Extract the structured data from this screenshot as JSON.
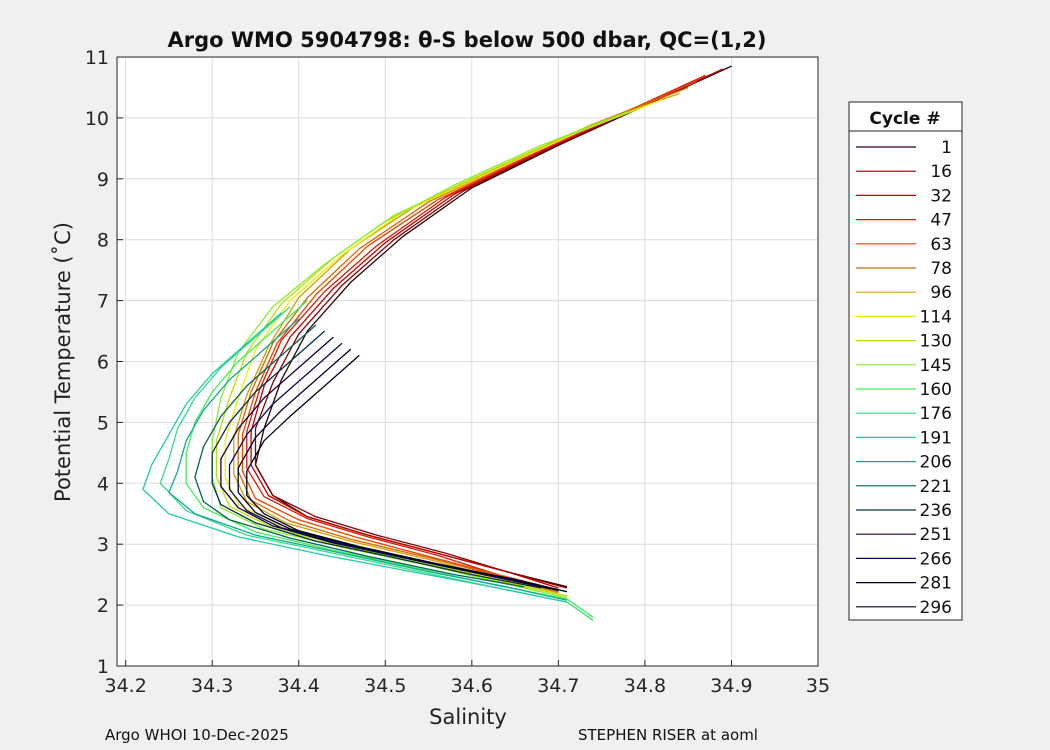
{
  "chart_data": {
    "type": "line",
    "title": "Argo WMO 5904798: θ-S below 500 dbar,  QC=(1,2)",
    "xlabel": "Salinity",
    "ylabel": "Potential Temperature (˚C)",
    "xlim": [
      34.19,
      35.0
    ],
    "ylim": [
      1,
      11
    ],
    "xticks": [
      "34.2",
      "34.3",
      "34.4",
      "34.5",
      "34.6",
      "34.7",
      "34.8",
      "34.9",
      "35"
    ],
    "yticks": [
      "1",
      "2",
      "3",
      "4",
      "5",
      "6",
      "7",
      "8",
      "9",
      "10",
      "11"
    ],
    "grid": true,
    "legend": {
      "title": "Cycle #",
      "placement": "outside-right"
    },
    "series": [
      {
        "name": "1",
        "color": "#2a0000",
        "points": [
          [
            34.9,
            10.85
          ],
          [
            34.8,
            10.2
          ],
          [
            34.7,
            9.55
          ],
          [
            34.6,
            8.85
          ],
          [
            34.52,
            8.05
          ],
          [
            34.46,
            7.3
          ],
          [
            34.41,
            6.5
          ],
          [
            34.38,
            5.7
          ],
          [
            34.36,
            4.9
          ],
          [
            34.35,
            4.3
          ],
          [
            34.37,
            3.8
          ],
          [
            34.41,
            3.45
          ],
          [
            34.48,
            3.15
          ],
          [
            34.56,
            2.85
          ],
          [
            34.64,
            2.55
          ],
          [
            34.71,
            2.3
          ]
        ]
      },
      {
        "name": "16",
        "color": "#8b0000",
        "points": [
          [
            34.89,
            10.8
          ],
          [
            34.79,
            10.15
          ],
          [
            34.69,
            9.5
          ],
          [
            34.59,
            8.8
          ],
          [
            34.51,
            8.0
          ],
          [
            34.45,
            7.25
          ],
          [
            34.4,
            6.45
          ],
          [
            34.37,
            5.65
          ],
          [
            34.35,
            4.9
          ],
          [
            34.35,
            4.3
          ],
          [
            34.37,
            3.8
          ],
          [
            34.42,
            3.45
          ],
          [
            34.49,
            3.15
          ],
          [
            34.57,
            2.85
          ],
          [
            34.64,
            2.55
          ],
          [
            34.71,
            2.28
          ]
        ]
      },
      {
        "name": "32",
        "color": "#c00000",
        "points": [
          [
            34.89,
            10.8
          ],
          [
            34.78,
            10.1
          ],
          [
            34.68,
            9.45
          ],
          [
            34.58,
            8.75
          ],
          [
            34.5,
            7.95
          ],
          [
            34.44,
            7.2
          ],
          [
            34.39,
            6.4
          ],
          [
            34.36,
            5.6
          ],
          [
            34.345,
            4.85
          ],
          [
            34.345,
            4.3
          ],
          [
            34.365,
            3.8
          ],
          [
            34.41,
            3.45
          ],
          [
            34.48,
            3.15
          ],
          [
            34.56,
            2.85
          ],
          [
            34.64,
            2.55
          ],
          [
            34.7,
            2.28
          ]
        ]
      },
      {
        "name": "47",
        "color": "#dd1a00",
        "points": [
          [
            34.87,
            10.7
          ],
          [
            34.77,
            10.05
          ],
          [
            34.67,
            9.4
          ],
          [
            34.57,
            8.7
          ],
          [
            34.49,
            7.9
          ],
          [
            34.43,
            7.15
          ],
          [
            34.38,
            6.35
          ],
          [
            34.355,
            5.55
          ],
          [
            34.34,
            4.85
          ],
          [
            34.34,
            4.25
          ],
          [
            34.36,
            3.78
          ],
          [
            34.41,
            3.42
          ],
          [
            34.48,
            3.12
          ],
          [
            34.56,
            2.82
          ],
          [
            34.63,
            2.5
          ],
          [
            34.7,
            2.25
          ]
        ]
      },
      {
        "name": "63",
        "color": "#ee4400",
        "points": [
          [
            34.86,
            10.6
          ],
          [
            34.76,
            10.0
          ],
          [
            34.66,
            9.35
          ],
          [
            34.56,
            8.65
          ],
          [
            34.48,
            7.9
          ],
          [
            34.42,
            7.1
          ],
          [
            34.375,
            6.3
          ],
          [
            34.35,
            5.5
          ],
          [
            34.335,
            4.8
          ],
          [
            34.335,
            4.2
          ],
          [
            34.35,
            3.75
          ],
          [
            34.4,
            3.4
          ],
          [
            34.47,
            3.1
          ],
          [
            34.55,
            2.8
          ],
          [
            34.63,
            2.5
          ],
          [
            34.7,
            2.25
          ]
        ]
      },
      {
        "name": "78",
        "color": "#d46a00",
        "points": [
          [
            34.85,
            10.5
          ],
          [
            34.75,
            9.95
          ],
          [
            34.65,
            9.3
          ],
          [
            34.55,
            8.62
          ],
          [
            34.47,
            7.85
          ],
          [
            34.41,
            7.05
          ],
          [
            34.37,
            6.3
          ],
          [
            34.345,
            5.5
          ],
          [
            34.33,
            4.8
          ],
          [
            34.33,
            4.2
          ],
          [
            34.345,
            3.72
          ],
          [
            34.39,
            3.38
          ],
          [
            34.46,
            3.08
          ],
          [
            34.55,
            2.78
          ],
          [
            34.63,
            2.48
          ],
          [
            34.7,
            2.22
          ]
        ]
      },
      {
        "name": "96",
        "color": "#d4a000",
        "points": [
          [
            34.84,
            10.4
          ],
          [
            34.74,
            9.9
          ],
          [
            34.64,
            9.25
          ],
          [
            34.54,
            8.6
          ],
          [
            34.46,
            7.85
          ],
          [
            34.4,
            7.05
          ],
          [
            34.365,
            6.25
          ],
          [
            34.34,
            5.45
          ],
          [
            34.325,
            4.75
          ],
          [
            34.325,
            4.15
          ],
          [
            34.34,
            3.7
          ],
          [
            34.385,
            3.35
          ],
          [
            34.46,
            3.05
          ],
          [
            34.55,
            2.75
          ],
          [
            34.63,
            2.45
          ],
          [
            34.7,
            2.2
          ]
        ]
      },
      {
        "name": "114",
        "color": "#eeee00",
        "points": [
          [
            34.82,
            10.3
          ],
          [
            34.72,
            9.75
          ],
          [
            34.62,
            9.1
          ],
          [
            34.52,
            8.45
          ],
          [
            34.45,
            7.75
          ],
          [
            34.39,
            7.0
          ],
          [
            34.35,
            6.2
          ],
          [
            34.33,
            5.4
          ],
          [
            34.315,
            4.7
          ],
          [
            34.315,
            4.1
          ],
          [
            34.33,
            3.65
          ],
          [
            34.38,
            3.3
          ],
          [
            34.46,
            3.0
          ],
          [
            34.55,
            2.7
          ],
          [
            34.63,
            2.42
          ],
          [
            34.7,
            2.18
          ]
        ]
      },
      {
        "name": "130",
        "color": "#bbe000",
        "points": [
          [
            34.8,
            10.2
          ],
          [
            34.7,
            9.65
          ],
          [
            34.6,
            9.0
          ],
          [
            34.51,
            8.4
          ],
          [
            34.44,
            7.7
          ],
          [
            34.38,
            6.95
          ],
          [
            34.34,
            6.15
          ],
          [
            34.32,
            5.4
          ],
          [
            34.305,
            4.7
          ],
          [
            34.305,
            4.1
          ],
          [
            34.32,
            3.62
          ],
          [
            34.37,
            3.27
          ],
          [
            34.45,
            2.97
          ],
          [
            34.55,
            2.68
          ],
          [
            34.63,
            2.4
          ],
          [
            34.71,
            2.15
          ]
        ]
      },
      {
        "name": "145",
        "color": "#88ee33",
        "points": [
          [
            34.78,
            10.1
          ],
          [
            34.68,
            9.55
          ],
          [
            34.58,
            8.9
          ],
          [
            34.5,
            8.3
          ],
          [
            34.43,
            7.6
          ],
          [
            34.37,
            6.9
          ],
          [
            34.33,
            6.15
          ],
          [
            34.31,
            5.4
          ],
          [
            34.3,
            4.7
          ],
          [
            34.3,
            4.1
          ],
          [
            34.31,
            3.6
          ],
          [
            34.36,
            3.25
          ],
          [
            34.45,
            2.95
          ],
          [
            34.55,
            2.65
          ],
          [
            34.63,
            2.38
          ],
          [
            34.71,
            2.12
          ]
        ]
      },
      {
        "name": "160",
        "color": "#44ee55",
        "points": [
          [
            34.41,
            7.0
          ],
          [
            34.37,
            6.5
          ],
          [
            34.33,
            6.0
          ],
          [
            34.3,
            5.5
          ],
          [
            34.28,
            5.0
          ],
          [
            34.27,
            4.5
          ],
          [
            34.27,
            4.0
          ],
          [
            34.29,
            3.6
          ],
          [
            34.35,
            3.2
          ],
          [
            34.44,
            2.9
          ],
          [
            34.54,
            2.6
          ],
          [
            34.63,
            2.32
          ],
          [
            34.71,
            2.1
          ],
          [
            34.74,
            1.8
          ]
        ]
      },
      {
        "name": "176",
        "color": "#33dd88",
        "points": [
          [
            34.39,
            6.9
          ],
          [
            34.35,
            6.4
          ],
          [
            34.31,
            5.9
          ],
          [
            34.28,
            5.4
          ],
          [
            34.26,
            4.9
          ],
          [
            34.25,
            4.4
          ],
          [
            34.24,
            4.0
          ],
          [
            34.27,
            3.55
          ],
          [
            34.34,
            3.15
          ],
          [
            34.44,
            2.85
          ],
          [
            34.54,
            2.55
          ],
          [
            34.63,
            2.28
          ],
          [
            34.71,
            2.05
          ],
          [
            34.74,
            1.75
          ]
        ]
      },
      {
        "name": "191",
        "color": "#22ccaa",
        "points": [
          [
            34.38,
            6.8
          ],
          [
            34.34,
            6.3
          ],
          [
            34.3,
            5.8
          ],
          [
            34.27,
            5.3
          ],
          [
            34.25,
            4.8
          ],
          [
            34.23,
            4.3
          ],
          [
            34.22,
            3.9
          ],
          [
            34.25,
            3.5
          ],
          [
            34.33,
            3.12
          ],
          [
            34.43,
            2.82
          ],
          [
            34.53,
            2.55
          ],
          [
            34.63,
            2.28
          ],
          [
            34.71,
            2.05
          ]
        ]
      },
      {
        "name": "206",
        "color": "#11a999",
        "points": [
          [
            34.4,
            6.7
          ],
          [
            34.36,
            6.2
          ],
          [
            34.32,
            5.7
          ],
          [
            34.29,
            5.2
          ],
          [
            34.27,
            4.7
          ],
          [
            34.26,
            4.2
          ],
          [
            34.25,
            3.85
          ],
          [
            34.28,
            3.5
          ],
          [
            34.35,
            3.15
          ],
          [
            34.45,
            2.85
          ],
          [
            34.55,
            2.55
          ],
          [
            34.64,
            2.3
          ],
          [
            34.71,
            2.08
          ]
        ]
      },
      {
        "name": "221",
        "color": "#006655",
        "points": [
          [
            34.42,
            6.6
          ],
          [
            34.38,
            6.1
          ],
          [
            34.34,
            5.6
          ],
          [
            34.31,
            5.1
          ],
          [
            34.29,
            4.6
          ],
          [
            34.28,
            4.1
          ],
          [
            34.29,
            3.7
          ],
          [
            34.32,
            3.4
          ],
          [
            34.39,
            3.1
          ],
          [
            34.48,
            2.8
          ],
          [
            34.58,
            2.5
          ],
          [
            34.66,
            2.3
          ]
        ]
      },
      {
        "name": "236",
        "color": "#003344",
        "points": [
          [
            34.43,
            6.5
          ],
          [
            34.39,
            6.0
          ],
          [
            34.35,
            5.5
          ],
          [
            34.32,
            5.0
          ],
          [
            34.3,
            4.5
          ],
          [
            34.3,
            4.0
          ],
          [
            34.31,
            3.65
          ],
          [
            34.35,
            3.35
          ],
          [
            34.42,
            3.05
          ],
          [
            34.51,
            2.78
          ],
          [
            34.6,
            2.5
          ],
          [
            34.68,
            2.28
          ]
        ]
      },
      {
        "name": "251",
        "color": "#1a0033",
        "points": [
          [
            34.44,
            6.4
          ],
          [
            34.4,
            5.9
          ],
          [
            34.36,
            5.4
          ],
          [
            34.33,
            4.9
          ],
          [
            34.31,
            4.4
          ],
          [
            34.31,
            3.95
          ],
          [
            34.33,
            3.6
          ],
          [
            34.37,
            3.3
          ],
          [
            34.44,
            3.02
          ],
          [
            34.53,
            2.75
          ],
          [
            34.62,
            2.48
          ],
          [
            34.69,
            2.27
          ]
        ]
      },
      {
        "name": "266",
        "color": "#0a0a66",
        "points": [
          [
            34.45,
            6.3
          ],
          [
            34.41,
            5.8
          ],
          [
            34.37,
            5.3
          ],
          [
            34.34,
            4.8
          ],
          [
            34.32,
            4.3
          ],
          [
            34.32,
            3.9
          ],
          [
            34.34,
            3.55
          ],
          [
            34.38,
            3.27
          ],
          [
            34.45,
            3.0
          ],
          [
            34.54,
            2.72
          ],
          [
            34.63,
            2.46
          ],
          [
            34.7,
            2.25
          ]
        ]
      },
      {
        "name": "281",
        "color": "#000033",
        "points": [
          [
            34.46,
            6.2
          ],
          [
            34.42,
            5.7
          ],
          [
            34.38,
            5.2
          ],
          [
            34.35,
            4.75
          ],
          [
            34.33,
            4.25
          ],
          [
            34.33,
            3.85
          ],
          [
            34.35,
            3.52
          ],
          [
            34.39,
            3.25
          ],
          [
            34.46,
            2.98
          ],
          [
            34.55,
            2.7
          ],
          [
            34.64,
            2.44
          ],
          [
            34.7,
            2.24
          ]
        ]
      },
      {
        "name": "296",
        "color": "#000022",
        "points": [
          [
            34.47,
            6.1
          ],
          [
            34.43,
            5.6
          ],
          [
            34.39,
            5.1
          ],
          [
            34.36,
            4.7
          ],
          [
            34.34,
            4.2
          ],
          [
            34.34,
            3.8
          ],
          [
            34.36,
            3.5
          ],
          [
            34.4,
            3.22
          ],
          [
            34.47,
            2.96
          ],
          [
            34.56,
            2.68
          ],
          [
            34.65,
            2.42
          ],
          [
            34.71,
            2.22
          ]
        ]
      }
    ]
  },
  "footer": {
    "left": "Argo WHOI 10-Dec-2025",
    "right": "STEPHEN RISER at aoml"
  }
}
